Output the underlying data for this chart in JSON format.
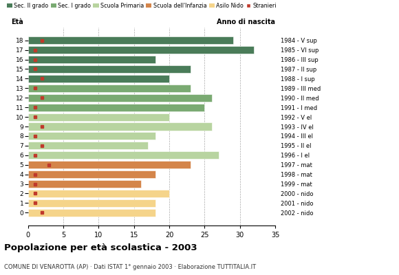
{
  "ages": [
    18,
    17,
    16,
    15,
    14,
    13,
    12,
    11,
    10,
    9,
    8,
    7,
    6,
    5,
    4,
    3,
    2,
    1,
    0
  ],
  "years": [
    "1984 - V sup",
    "1985 - VI sup",
    "1986 - III sup",
    "1987 - II sup",
    "1988 - I sup",
    "1989 - III med",
    "1990 - II med",
    "1991 - I med",
    "1992 - V el",
    "1993 - IV el",
    "1994 - III el",
    "1995 - II el",
    "1996 - I el",
    "1997 - mat",
    "1998 - mat",
    "1999 - mat",
    "2000 - nido",
    "2001 - nido",
    "2002 - nido"
  ],
  "values": [
    29,
    32,
    18,
    23,
    20,
    23,
    26,
    25,
    20,
    26,
    18,
    17,
    27,
    23,
    18,
    16,
    20,
    18,
    18
  ],
  "stranieri": [
    2,
    1,
    1,
    1,
    2,
    1,
    2,
    1,
    1,
    2,
    1,
    2,
    1,
    3,
    1,
    1,
    1,
    1,
    2
  ],
  "colors": {
    "sec2": "#4a7c59",
    "sec1": "#7aaa72",
    "primaria": "#b8d4a0",
    "infanzia": "#d4854a",
    "nido": "#f5d48a",
    "stranieri": "#c0392b"
  },
  "bar_colors": [
    "#4a7c59",
    "#4a7c59",
    "#4a7c59",
    "#4a7c59",
    "#4a7c59",
    "#7aaa72",
    "#7aaa72",
    "#7aaa72",
    "#b8d4a0",
    "#b8d4a0",
    "#b8d4a0",
    "#b8d4a0",
    "#b8d4a0",
    "#d4854a",
    "#d4854a",
    "#d4854a",
    "#f5d48a",
    "#f5d48a",
    "#f5d48a"
  ],
  "legend_labels": [
    "Sec. II grado",
    "Sec. I grado",
    "Scuola Primaria",
    "Scuola dell'Infanzia",
    "Asilo Nido",
    "Stranieri"
  ],
  "legend_colors": [
    "#4a7c59",
    "#7aaa72",
    "#b8d4a0",
    "#d4854a",
    "#f5d48a",
    "#c0392b"
  ],
  "title": "Popolazione per età scolastica - 2003",
  "subtitle": "COMUNE DI VENAROTTA (AP) · Dati ISTAT 1° gennaio 2003 · Elaborazione TUTTITALIA.IT",
  "xlabel_eta": "Età",
  "xlabel_anno": "Anno di nascita",
  "xlim": [
    0,
    35
  ],
  "xticks": [
    0,
    5,
    10,
    15,
    20,
    25,
    30,
    35
  ],
  "grid_color": "#aaaaaa",
  "bg_color": "#ffffff"
}
